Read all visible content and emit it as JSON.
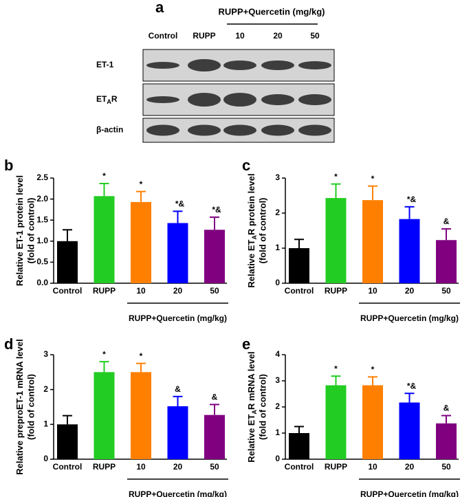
{
  "blot": {
    "panel_label": "a",
    "group_label": "RUPP+Quercetin (mg/kg)",
    "lanes": [
      "Control",
      "RUPP",
      "10",
      "20",
      "50"
    ],
    "rows": [
      [
        {
          "text": "ET-1"
        }
      ],
      [
        {
          "text": "ET"
        },
        {
          "text": "A",
          "sub": true
        },
        {
          "text": "R"
        }
      ],
      [
        {
          "text": "β-actin"
        }
      ]
    ]
  },
  "chart_data": [
    {
      "type": "bar",
      "panel_label": "b",
      "ylabel": [
        {
          "text": "Relative ET-1 protein level"
        }
      ],
      "ylabel2": "(fold of control)",
      "categories": [
        "Control",
        "RUPP",
        "10",
        "20",
        "50"
      ],
      "group_label": "RUPP+Quercetin (mg/kg)",
      "values": [
        1.0,
        2.07,
        1.93,
        1.43,
        1.27
      ],
      "errors": [
        0.27,
        0.3,
        0.25,
        0.28,
        0.3
      ],
      "annotations": [
        null,
        "*",
        "*",
        "*&",
        "*&"
      ],
      "colors": [
        "#000000",
        "#22cc22",
        "#ff8000",
        "#0000ff",
        "#800080"
      ],
      "ylim": [
        0,
        2.5
      ],
      "yticks": [
        {
          "value": 0,
          "label": "0.0"
        },
        {
          "value": 0.5,
          "label": "0.5"
        },
        {
          "value": 1,
          "label": "1.0"
        },
        {
          "value": 1.5,
          "label": "1.5"
        },
        {
          "value": 2,
          "label": "2.0"
        },
        {
          "value": 2.5,
          "label": "2.5"
        }
      ]
    },
    {
      "type": "bar",
      "panel_label": "c",
      "ylabel": [
        {
          "text": "Relative ET"
        },
        {
          "text": "A",
          "sub": true
        },
        {
          "text": "R protein level"
        }
      ],
      "ylabel2": "(fold of control)",
      "categories": [
        "Control",
        "RUPP",
        "10",
        "20",
        "50"
      ],
      "group_label": "RUPP+Quercetin (mg/kg)",
      "values": [
        1.0,
        2.43,
        2.37,
        1.83,
        1.23
      ],
      "errors": [
        0.25,
        0.4,
        0.4,
        0.35,
        0.32
      ],
      "annotations": [
        null,
        "*",
        "*",
        "*&",
        "&"
      ],
      "colors": [
        "#000000",
        "#22cc22",
        "#ff8000",
        "#0000ff",
        "#800080"
      ],
      "ylim": [
        0,
        3
      ],
      "yticks": [
        0,
        1,
        2,
        3
      ]
    },
    {
      "type": "bar",
      "panel_label": "d",
      "ylabel": [
        {
          "text": "Relative preproET-1 mRNA level"
        }
      ],
      "ylabel2": "(fold of control)",
      "categories": [
        "Control",
        "RUPP",
        "10",
        "20",
        "50"
      ],
      "group_label": "RUPP+Quercetin (mg/kg)",
      "values": [
        1.0,
        2.5,
        2.5,
        1.52,
        1.27
      ],
      "errors": [
        0.25,
        0.3,
        0.25,
        0.28,
        0.3
      ],
      "annotations": [
        null,
        "*",
        "*",
        "&",
        "&"
      ],
      "colors": [
        "#000000",
        "#22cc22",
        "#ff8000",
        "#0000ff",
        "#800080"
      ],
      "ylim": [
        0,
        3
      ],
      "yticks": [
        0,
        1,
        2,
        3
      ]
    },
    {
      "type": "bar",
      "panel_label": "e",
      "ylabel": [
        {
          "text": "Relative ET"
        },
        {
          "text": "A",
          "sub": true
        },
        {
          "text": "R mRNA level"
        }
      ],
      "ylabel2": "(fold of control)",
      "categories": [
        "Control",
        "RUPP",
        "10",
        "20",
        "50"
      ],
      "group_label": "RUPP+Quercetin (mg/kg)",
      "values": [
        1.0,
        2.83,
        2.83,
        2.17,
        1.37
      ],
      "errors": [
        0.25,
        0.35,
        0.32,
        0.35,
        0.3
      ],
      "annotations": [
        null,
        "*",
        "*",
        "*&",
        "&"
      ],
      "colors": [
        "#000000",
        "#22cc22",
        "#ff8000",
        "#0000ff",
        "#800080"
      ],
      "ylim": [
        0,
        4
      ],
      "yticks": [
        0,
        1,
        2,
        3,
        4
      ]
    }
  ]
}
